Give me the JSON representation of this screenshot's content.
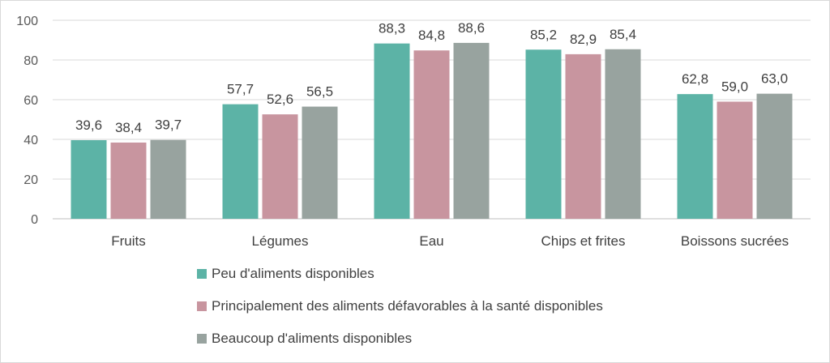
{
  "chart_data": {
    "type": "bar",
    "categories": [
      "Fruits",
      "Légumes",
      "Eau",
      "Chips et frites",
      "Boissons sucrées"
    ],
    "series": [
      {
        "name": "Peu d'aliments disponibles",
        "color": "#5cb3a6",
        "values": [
          39.6,
          57.7,
          88.3,
          85.2,
          62.8
        ],
        "labels": [
          "39,6",
          "57,7",
          "88,3",
          "85,2",
          "62,8"
        ]
      },
      {
        "name": "Principalement des aliments défavorables à la santé disponibles",
        "color": "#c8959f",
        "values": [
          38.4,
          52.6,
          84.8,
          82.9,
          59.0
        ],
        "labels": [
          "38,4",
          "52,6",
          "84,8",
          "82,9",
          "59,0"
        ]
      },
      {
        "name": "Beaucoup d'aliments disponibles",
        "color": "#98a39f",
        "values": [
          39.7,
          56.5,
          88.6,
          85.4,
          63.0
        ],
        "labels": [
          "39,7",
          "56,5",
          "88,6",
          "85,4",
          "63,0"
        ]
      }
    ],
    "ylim": [
      0,
      100
    ],
    "yticks": [
      "0",
      "20",
      "40",
      "60",
      "80",
      "100"
    ],
    "grid": true,
    "legend_position": "bottom",
    "title": "",
    "xlabel": "",
    "ylabel": ""
  }
}
